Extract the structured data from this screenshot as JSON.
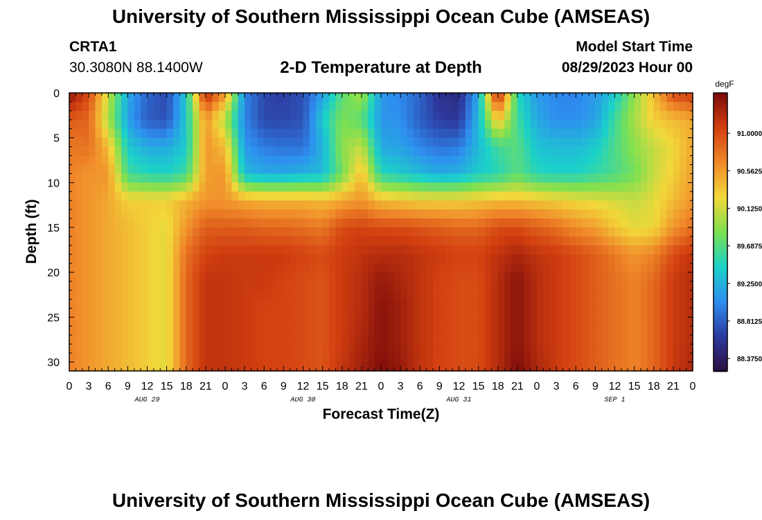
{
  "header": {
    "title": "University of Southern Mississippi Ocean Cube (AMSEAS)",
    "station_id": "CRTA1",
    "station_coords": "30.3080N  88.1400W",
    "subtitle": "2-D Temperature at Depth",
    "model_start_label": "Model Start Time",
    "model_start_value": "08/29/2023 Hour 00"
  },
  "footer": {
    "title": "University of Southern Mississippi Ocean Cube (AMSEAS)"
  },
  "colors": {
    "very_cold": "#2a0f40",
    "cold": "#2d3a9f",
    "cool": "#2e8ef0",
    "cyan": "#1bd2c8",
    "green": "#7ee050",
    "yellow": "#f2d83a",
    "orange": "#f08a2a",
    "red": "#d23f10",
    "very_hot": "#7a0a0a"
  },
  "chart_data": {
    "type": "heatmap",
    "title": "2-D Temperature at Depth",
    "xlabel": "Forecast Time(Z)",
    "ylabel": "Depth (ft)",
    "x_unit": "hours since model start",
    "xlim": [
      0,
      96
    ],
    "ylim": [
      0,
      31
    ],
    "y_inverted": true,
    "x_tick_values": [
      0,
      3,
      6,
      9,
      12,
      15,
      18,
      21,
      24,
      27,
      30,
      33,
      36,
      39,
      42,
      45,
      48,
      51,
      54,
      57,
      60,
      63,
      66,
      69,
      72,
      75,
      78,
      81,
      84,
      87,
      90,
      93,
      96
    ],
    "x_tick_labels": [
      "0",
      "3",
      "6",
      "9",
      "12",
      "15",
      "18",
      "21",
      "0",
      "3",
      "6",
      "9",
      "12",
      "15",
      "18",
      "21",
      "0",
      "3",
      "6",
      "9",
      "12",
      "15",
      "18",
      "21",
      "0",
      "3",
      "6",
      "9",
      "12",
      "15",
      "18",
      "21",
      "0"
    ],
    "y_tick_values": [
      0,
      5,
      10,
      15,
      20,
      25,
      30
    ],
    "y_tick_labels": [
      "0",
      "5",
      "10",
      "15",
      "20",
      "25",
      "30"
    ],
    "date_labels": [
      {
        "hour": 12,
        "label": "AUG 29"
      },
      {
        "hour": 36,
        "label": "AUG 30"
      },
      {
        "hour": 60,
        "label": "AUG 31"
      },
      {
        "hour": 84,
        "label": "SEP 1"
      }
    ],
    "colorbar": {
      "unit": "degF",
      "min": 88.23,
      "max": 91.47,
      "tick_values": [
        91.0,
        90.5625,
        90.125,
        89.6875,
        89.25,
        88.8125,
        88.375
      ],
      "tick_labels": [
        "91.0000",
        "90.5625",
        "90.1250",
        "89.6875",
        "89.2500",
        "88.8125",
        "88.3750"
      ]
    },
    "grid_hours": [
      0,
      3,
      6,
      9,
      12,
      15,
      18,
      21,
      24,
      27,
      30,
      33,
      36,
      39,
      42,
      45,
      48,
      51,
      54,
      57,
      60,
      63,
      66,
      69,
      72,
      75,
      78,
      81,
      84,
      87,
      90,
      93,
      96
    ],
    "grid_depths": [
      0,
      3,
      6,
      9,
      12,
      15,
      18,
      21,
      24,
      28,
      31
    ],
    "values": [
      [
        91.4,
        91.0,
        90.1,
        89.2,
        88.85,
        88.7,
        89.4,
        91.2,
        90.6,
        89.0,
        88.7,
        88.65,
        88.75,
        89.15,
        89.7,
        90.0,
        89.1,
        89.0,
        88.85,
        88.55,
        88.5,
        89.2,
        91.3,
        89.5,
        89.1,
        89.0,
        89.0,
        89.1,
        89.4,
        89.9,
        90.4,
        91.0,
        91.1
      ],
      [
        90.9,
        90.85,
        90.0,
        89.15,
        88.8,
        88.75,
        89.4,
        90.6,
        90.0,
        89.0,
        88.7,
        88.7,
        88.75,
        89.4,
        89.85,
        89.7,
        89.1,
        89.05,
        88.8,
        88.65,
        88.6,
        89.3,
        90.4,
        89.6,
        89.2,
        89.05,
        89.05,
        89.15,
        89.6,
        90.0,
        90.3,
        90.4,
        90.5
      ],
      [
        90.75,
        90.8,
        90.4,
        89.4,
        89.2,
        89.2,
        89.4,
        90.6,
        90.4,
        89.1,
        88.95,
        88.9,
        88.9,
        89.25,
        89.9,
        90.1,
        89.2,
        89.15,
        89.0,
        88.9,
        88.95,
        89.3,
        89.6,
        89.7,
        89.35,
        89.3,
        89.3,
        89.4,
        89.65,
        89.9,
        90.1,
        90.25,
        90.5
      ],
      [
        90.7,
        90.6,
        90.6,
        89.6,
        89.5,
        89.45,
        89.6,
        90.55,
        90.6,
        89.3,
        89.2,
        89.2,
        89.25,
        89.3,
        89.8,
        90.4,
        89.5,
        89.4,
        89.3,
        89.2,
        89.25,
        89.4,
        89.5,
        89.7,
        89.5,
        89.45,
        89.45,
        89.55,
        89.65,
        89.8,
        90.1,
        90.3,
        90.55
      ],
      [
        90.7,
        90.6,
        90.5,
        90.3,
        90.3,
        90.3,
        90.45,
        90.6,
        90.6,
        90.5,
        90.45,
        90.45,
        90.45,
        90.4,
        90.5,
        90.6,
        90.4,
        90.35,
        90.3,
        90.3,
        90.3,
        90.35,
        90.4,
        90.4,
        90.35,
        90.3,
        90.25,
        90.2,
        90.15,
        90.1,
        90.2,
        90.4,
        90.6
      ],
      [
        90.7,
        90.6,
        90.5,
        90.4,
        90.3,
        90.2,
        90.6,
        90.9,
        90.9,
        90.9,
        90.85,
        90.85,
        90.8,
        90.75,
        91.0,
        91.05,
        91.0,
        91.0,
        90.95,
        90.9,
        90.85,
        90.85,
        91.0,
        91.0,
        90.9,
        90.8,
        90.65,
        90.55,
        90.35,
        90.2,
        90.25,
        90.6,
        90.8
      ],
      [
        90.7,
        90.6,
        90.5,
        90.4,
        90.3,
        90.2,
        90.8,
        91.05,
        91.1,
        91.1,
        91.1,
        91.1,
        91.05,
        91.0,
        91.1,
        91.15,
        91.2,
        91.2,
        91.15,
        91.1,
        91.05,
        91.05,
        91.15,
        91.25,
        91.15,
        91.1,
        91.0,
        90.9,
        90.75,
        90.6,
        90.7,
        91.0,
        91.15
      ],
      [
        90.7,
        90.6,
        90.5,
        90.4,
        90.3,
        90.2,
        90.85,
        91.15,
        91.15,
        91.1,
        91.1,
        91.05,
        91.0,
        90.95,
        91.1,
        91.2,
        91.35,
        91.25,
        91.15,
        91.05,
        91.0,
        91.0,
        91.2,
        91.4,
        91.2,
        91.1,
        91.0,
        90.9,
        90.8,
        90.7,
        90.85,
        91.1,
        91.2
      ],
      [
        90.7,
        90.6,
        90.5,
        90.4,
        90.3,
        90.2,
        90.85,
        91.15,
        91.15,
        91.1,
        91.05,
        91.05,
        91.0,
        90.95,
        91.1,
        91.2,
        91.4,
        91.3,
        91.15,
        91.05,
        91.0,
        91.0,
        91.2,
        91.4,
        91.2,
        91.1,
        91.0,
        90.9,
        90.8,
        90.7,
        90.85,
        91.1,
        91.2
      ],
      [
        90.7,
        90.6,
        90.5,
        90.4,
        90.3,
        90.2,
        90.85,
        91.15,
        91.15,
        91.1,
        91.05,
        91.05,
        91.0,
        90.95,
        91.1,
        91.25,
        91.4,
        91.3,
        91.15,
        91.05,
        91.0,
        91.0,
        91.2,
        91.4,
        91.2,
        91.1,
        91.0,
        90.9,
        90.8,
        90.7,
        90.85,
        91.1,
        91.2
      ],
      [
        90.7,
        90.6,
        90.5,
        90.4,
        90.3,
        90.2,
        90.85,
        91.15,
        91.15,
        91.1,
        91.05,
        91.05,
        91.0,
        90.95,
        91.15,
        91.3,
        91.45,
        91.35,
        91.15,
        91.05,
        91.0,
        91.0,
        91.2,
        91.45,
        91.25,
        91.1,
        91.0,
        90.9,
        90.8,
        90.7,
        90.85,
        91.1,
        91.25
      ]
    ]
  }
}
